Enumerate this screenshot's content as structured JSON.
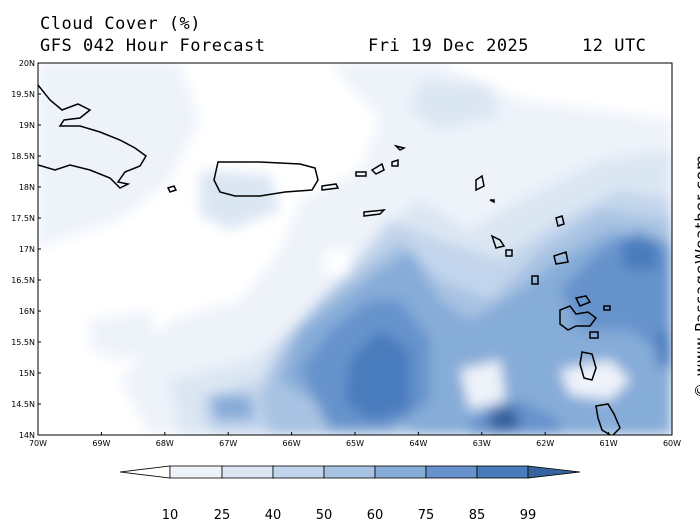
{
  "header": {
    "title": "Cloud Cover (%)",
    "model": "GFS 042 Hour Forecast",
    "date": "Fri 19 Dec 2025",
    "time": "12 UTC"
  },
  "credit": "© www.PassageWeather.com",
  "map": {
    "lon_labels": [
      "70W",
      "69W",
      "68W",
      "67W",
      "66W",
      "65W",
      "64W",
      "63W",
      "62W",
      "61W",
      "60W"
    ],
    "lat_labels": [
      "20N",
      "19.5N",
      "19N",
      "18.5N",
      "18N",
      "17.5N",
      "17N",
      "16.5N",
      "16N",
      "15.5N",
      "15N",
      "14.5N",
      "14N"
    ],
    "lon_range": [
      -70,
      -60
    ],
    "lat_range": [
      14,
      20
    ]
  },
  "colorbar": {
    "ticks": [
      "10",
      "25",
      "40",
      "50",
      "60",
      "75",
      "85",
      "99"
    ],
    "colors": [
      "#ffffff",
      "#eef3fa",
      "#dbe6f3",
      "#c3d5ec",
      "#a7c2e2",
      "#86acd8",
      "#6693cc",
      "#4a7bbd",
      "#36629d"
    ]
  }
}
